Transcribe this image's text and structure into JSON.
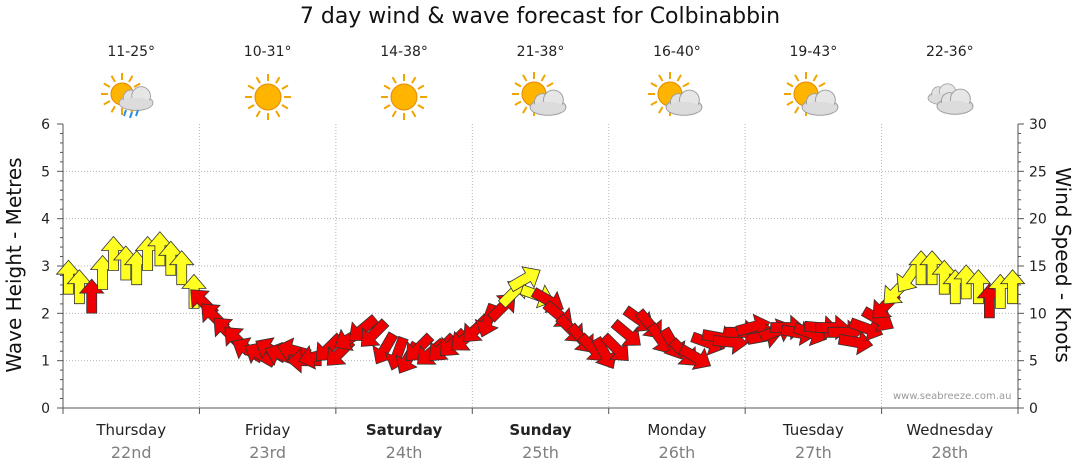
{
  "chart_data": {
    "type": "line",
    "title": "7 day wind & wave forecast for Colbinabbin",
    "ylabel_left": "Wave Height - Metres",
    "ylabel_right": "Wind Speed - Knots",
    "ylim_left": [
      0,
      6
    ],
    "ylim_right": [
      0,
      30
    ],
    "yticks_left": [
      "0",
      "1",
      "2",
      "3",
      "4",
      "5",
      "6"
    ],
    "yticks_right": [
      "0",
      "5",
      "10",
      "15",
      "20",
      "25",
      "30"
    ],
    "grid": true,
    "days": [
      {
        "name": "Thursday",
        "date": "22nd",
        "temp": "11-25°",
        "icon": "sun-cloud-rain-icon",
        "bold": false
      },
      {
        "name": "Friday",
        "date": "23rd",
        "temp": "10-31°",
        "icon": "sun-icon",
        "bold": false
      },
      {
        "name": "Saturday",
        "date": "24th",
        "temp": "14-38°",
        "icon": "sun-icon",
        "bold": true
      },
      {
        "name": "Sunday",
        "date": "25th",
        "temp": "21-38°",
        "icon": "sun-cloud-icon",
        "bold": true
      },
      {
        "name": "Monday",
        "date": "26th",
        "temp": "16-40°",
        "icon": "sun-cloud-icon",
        "bold": false
      },
      {
        "name": "Tuesday",
        "date": "27th",
        "temp": "19-43°",
        "icon": "sun-cloud-icon",
        "bold": false
      },
      {
        "name": "Wednesday",
        "date": "28th",
        "temp": "22-36°",
        "icon": "cloud-icon",
        "bold": false
      }
    ],
    "wind_series": {
      "name": "Wind Speed - Knots",
      "x_days": [
        0.0,
        0.08,
        0.17,
        0.25,
        0.33,
        0.42,
        0.5,
        0.58,
        0.67,
        0.75,
        0.83,
        0.92,
        1.0,
        1.08,
        1.17,
        1.25,
        1.33,
        1.42,
        1.5,
        1.58,
        1.67,
        1.75,
        1.83,
        1.92,
        2.0,
        2.08,
        2.17,
        2.25,
        2.33,
        2.42,
        2.5,
        2.58,
        2.67,
        2.75,
        2.83,
        2.92,
        3.0,
        3.08,
        3.17,
        3.25,
        3.33,
        3.42,
        3.5,
        3.58,
        3.67,
        3.75,
        3.83,
        3.92,
        4.0,
        4.08,
        4.17,
        4.25,
        4.33,
        4.42,
        4.5,
        4.58,
        4.67,
        4.75,
        4.83,
        4.92,
        5.0,
        5.08,
        5.17,
        5.25,
        5.33,
        5.42,
        5.5,
        5.58,
        5.67,
        5.75,
        5.83,
        5.92,
        6.0,
        6.08,
        6.17,
        6.25,
        6.33,
        6.42,
        6.5,
        6.58,
        6.67,
        6.75,
        6.83,
        6.92
      ],
      "speed_kn": [
        13.5,
        12.5,
        11.5,
        14.0,
        16.0,
        15.0,
        14.5,
        16.0,
        16.5,
        15.5,
        14.5,
        12.0,
        11.0,
        9.5,
        8.0,
        7.0,
        6.0,
        5.5,
        6.0,
        5.5,
        6.0,
        5.0,
        5.5,
        6.5,
        6.0,
        7.5,
        8.5,
        8.0,
        6.5,
        6.0,
        5.5,
        6.5,
        6.0,
        6.5,
        7.0,
        7.5,
        8.5,
        9.5,
        10.5,
        12.0,
        13.5,
        12.0,
        11.5,
        10.0,
        8.5,
        7.5,
        6.5,
        6.0,
        6.5,
        8.0,
        9.5,
        9.0,
        7.5,
        7.0,
        6.0,
        5.5,
        7.0,
        7.5,
        7.0,
        8.0,
        8.5,
        7.5,
        8.0,
        8.5,
        8.0,
        8.0,
        8.5,
        8.5,
        8.0,
        7.0,
        8.5,
        9.5,
        11.0,
        12.5,
        14.0,
        14.5,
        14.5,
        13.5,
        12.5,
        13.0,
        12.5,
        11.0,
        12.0,
        12.5
      ],
      "direction_deg": [
        0,
        0,
        0,
        0,
        0,
        0,
        0,
        0,
        0,
        0,
        0,
        0,
        315,
        315,
        315,
        315,
        300,
        300,
        300,
        290,
        285,
        270,
        255,
        225,
        225,
        240,
        230,
        225,
        210,
        200,
        210,
        225,
        230,
        225,
        225,
        230,
        225,
        200,
        45,
        45,
        60,
        110,
        120,
        130,
        135,
        140,
        135,
        150,
        135,
        130,
        125,
        140,
        145,
        150,
        135,
        120,
        110,
        100,
        95,
        90,
        75,
        80,
        70,
        90,
        100,
        110,
        95,
        90,
        90,
        100,
        110,
        120,
        225,
        225,
        215,
        0,
        0,
        0,
        0,
        0,
        0,
        0,
        0,
        0
      ],
      "colors_by_speed": {
        "red_below_kn": 12,
        "red": "#ee0000",
        "yellow": "#ffff22"
      }
    }
  },
  "credit": "www.seabreeze.com.au"
}
